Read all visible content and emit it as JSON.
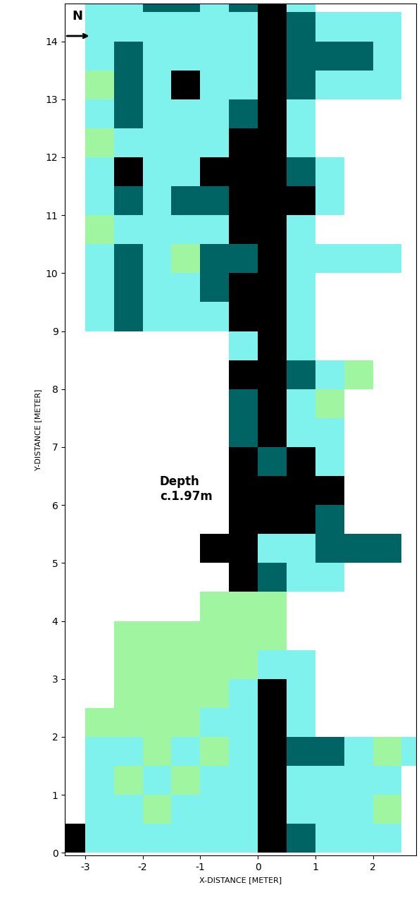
{
  "chart_data": {
    "type": "heatmap",
    "x_label": "X-DISTANCE [METER]",
    "y_label": "Y-DISTANCE [METER]",
    "annotations": [
      "Depth\nc.1.97m"
    ],
    "north_label": "N",
    "xlim": [
      -3.35,
      2.75
    ],
    "ylim": [
      -0.05,
      14.65
    ],
    "xticks": [
      -3,
      -2,
      -1,
      0,
      1,
      2
    ],
    "yticks": [
      0,
      1,
      2,
      3,
      4,
      5,
      6,
      7,
      8,
      9,
      10,
      11,
      12,
      13,
      14
    ],
    "colors": [
      "#a0f5a0",
      "#80f2ee",
      "#006464",
      "#000000"
    ],
    "cells": {
      "x_edges": [
        -3.5,
        -3.0,
        -2.5,
        -2.0,
        -1.5,
        -1.0,
        -0.5,
        0.0,
        0.5,
        1.0,
        1.5,
        2.0,
        2.5,
        3.0
      ],
      "y_edges": [
        0.0,
        0.5,
        1.0,
        1.5,
        2.0,
        2.5,
        3.0,
        3.5,
        4.0,
        4.5,
        5.0,
        5.5,
        6.0,
        6.5,
        7.0,
        7.5,
        8.0,
        8.5,
        9.0,
        9.5,
        10.0,
        10.5,
        11.0,
        11.5,
        12.0,
        12.5,
        13.0,
        13.5,
        14.0,
        14.5,
        15.0
      ],
      "values": [
        [
          3,
          1,
          1,
          1,
          1,
          1,
          1,
          3,
          2,
          1,
          1,
          1,
          null
        ],
        [
          null,
          1,
          1,
          0,
          1,
          1,
          1,
          3,
          1,
          1,
          1,
          0,
          null
        ],
        [
          null,
          1,
          0,
          1,
          0,
          1,
          1,
          3,
          1,
          1,
          1,
          1,
          null
        ],
        [
          null,
          1,
          1,
          0,
          1,
          0,
          1,
          3,
          2,
          2,
          1,
          0,
          1
        ],
        [
          null,
          0,
          0,
          0,
          0,
          1,
          1,
          3,
          1,
          null,
          null,
          null,
          null
        ],
        [
          null,
          null,
          0,
          0,
          0,
          0,
          1,
          3,
          1,
          null,
          null,
          null,
          null
        ],
        [
          null,
          null,
          0,
          0,
          0,
          0,
          0,
          1,
          1,
          null,
          null,
          null,
          null
        ],
        [
          null,
          null,
          0,
          0,
          0,
          0,
          0,
          0,
          null,
          null,
          null,
          null,
          null
        ],
        [
          null,
          null,
          null,
          null,
          null,
          0,
          0,
          0,
          null,
          null,
          null,
          null,
          null
        ],
        [
          null,
          null,
          null,
          null,
          null,
          null,
          3,
          2,
          1,
          1,
          null,
          null,
          null
        ],
        [
          null,
          null,
          null,
          null,
          null,
          3,
          3,
          1,
          1,
          2,
          2,
          2,
          null
        ],
        [
          null,
          null,
          null,
          null,
          null,
          null,
          3,
          3,
          3,
          2,
          null,
          null,
          null
        ],
        [
          null,
          null,
          null,
          null,
          null,
          null,
          3,
          3,
          3,
          3,
          null,
          null,
          null
        ],
        [
          null,
          null,
          null,
          null,
          null,
          null,
          3,
          2,
          3,
          1,
          null,
          null,
          null
        ],
        [
          null,
          null,
          null,
          null,
          null,
          null,
          2,
          3,
          1,
          1,
          null,
          null,
          null
        ],
        [
          null,
          null,
          null,
          null,
          null,
          null,
          2,
          3,
          1,
          0,
          null,
          null,
          null
        ],
        [
          null,
          null,
          null,
          null,
          null,
          null,
          3,
          3,
          2,
          1,
          0,
          null,
          null
        ],
        [
          null,
          null,
          null,
          null,
          null,
          null,
          1,
          3,
          1,
          null,
          null,
          null,
          null
        ],
        [
          null,
          1,
          2,
          1,
          1,
          1,
          3,
          3,
          1,
          null,
          null,
          null,
          null
        ],
        [
          null,
          1,
          2,
          1,
          1,
          2,
          3,
          3,
          1,
          null,
          null,
          null,
          null
        ],
        [
          null,
          1,
          2,
          1,
          0,
          2,
          2,
          3,
          1,
          1,
          1,
          1,
          null
        ],
        [
          null,
          0,
          1,
          1,
          1,
          1,
          3,
          3,
          1,
          null,
          null,
          null,
          null
        ],
        [
          null,
          1,
          2,
          1,
          2,
          2,
          3,
          3,
          3,
          1,
          null,
          null,
          null
        ],
        [
          null,
          1,
          3,
          1,
          1,
          3,
          3,
          3,
          2,
          1,
          null,
          null,
          null
        ],
        [
          null,
          0,
          1,
          1,
          1,
          1,
          3,
          3,
          1,
          null,
          null,
          null,
          null
        ],
        [
          null,
          1,
          2,
          1,
          1,
          1,
          2,
          3,
          1,
          null,
          null,
          null,
          null
        ],
        [
          null,
          0,
          2,
          1,
          3,
          1,
          1,
          3,
          2,
          1,
          1,
          1,
          null
        ],
        [
          null,
          1,
          2,
          1,
          1,
          1,
          1,
          3,
          2,
          2,
          2,
          1,
          null
        ],
        [
          null,
          1,
          1,
          1,
          1,
          1,
          1,
          3,
          2,
          1,
          1,
          1,
          null
        ],
        [
          null,
          1,
          1,
          2,
          2,
          1,
          2,
          3,
          1,
          null,
          null,
          null,
          null
        ]
      ]
    }
  }
}
